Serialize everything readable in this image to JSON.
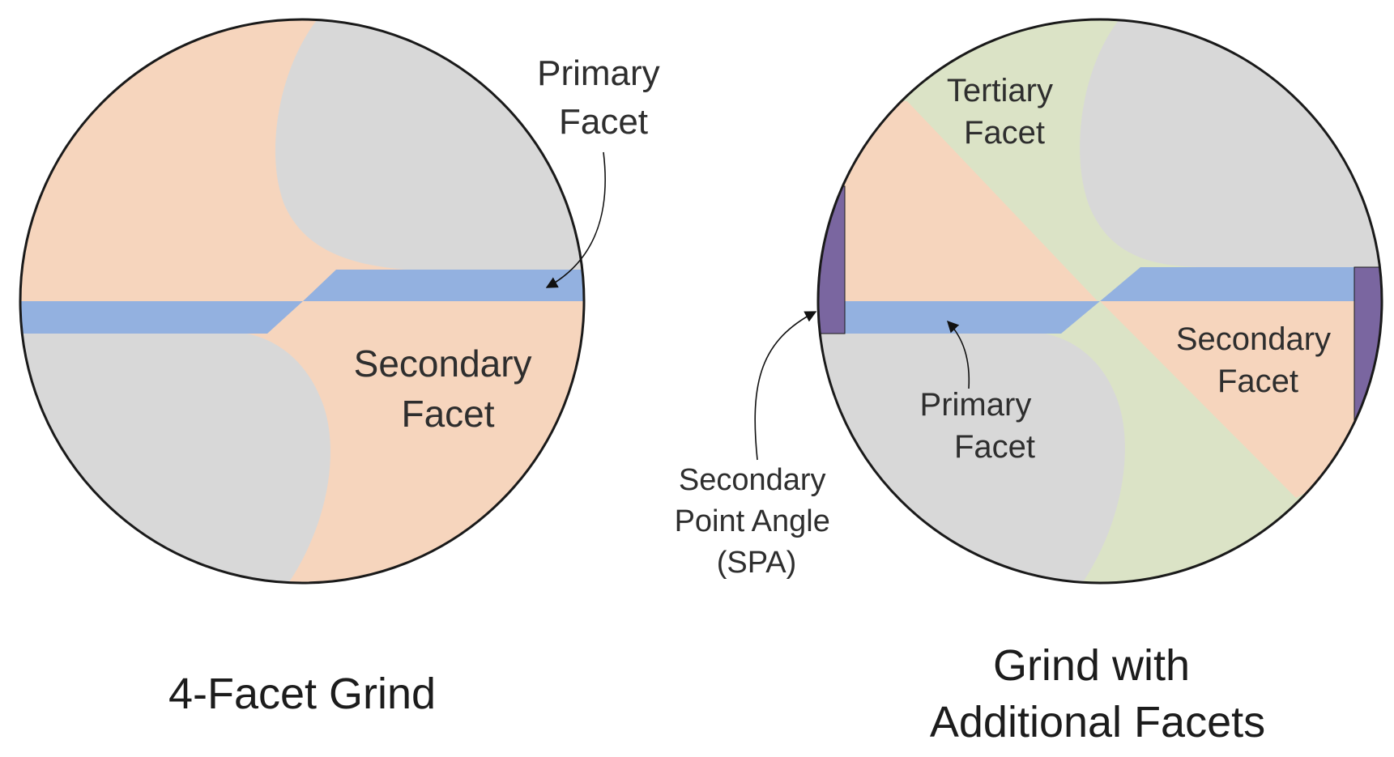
{
  "colors": {
    "secondary_facet": "#f6d5bd",
    "primary_facet": "#93b1e0",
    "heel": "#d8d8d8",
    "tertiary_facet": "#dbe3c6",
    "spa": "#7a66a0",
    "outline": "#1a1a1a"
  },
  "left_diagram": {
    "caption": "4-Facet Grind",
    "primary_label": [
      "Primary",
      "Facet"
    ],
    "secondary_label": [
      "Secondary",
      "Facet"
    ]
  },
  "right_diagram": {
    "caption": [
      "Grind with",
      "Additional Facets"
    ],
    "tertiary_label": [
      "Tertiary",
      "Facet"
    ],
    "secondary_label": [
      "Secondary",
      "Facet"
    ],
    "primary_label": [
      "Primary",
      "Facet"
    ],
    "spa_label": [
      "Secondary",
      "Point Angle",
      "(SPA)"
    ]
  }
}
